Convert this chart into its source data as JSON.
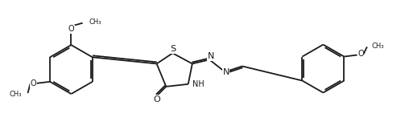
{
  "bg": "#ffffff",
  "lc": "#1a1a1a",
  "lw": 1.3,
  "fs": 7.5,
  "xlim": [
    0.05,
    5.0
  ],
  "ylim": [
    0.1,
    1.6
  ]
}
